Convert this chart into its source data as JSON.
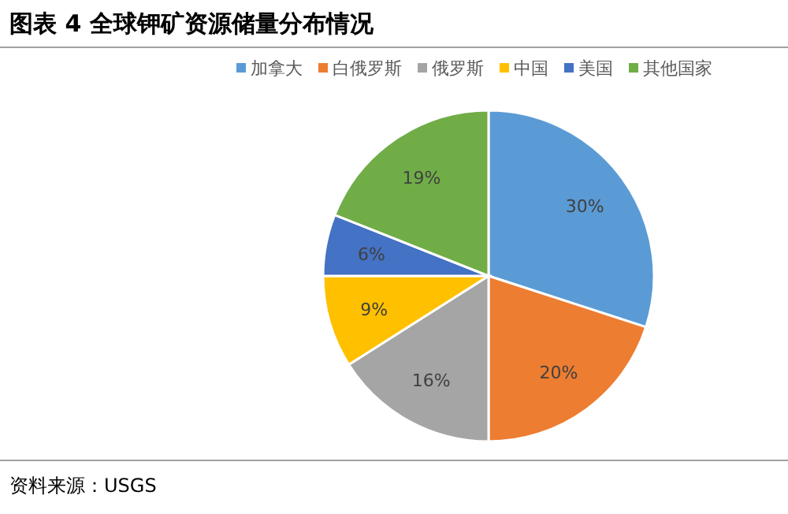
{
  "chart_data": {
    "type": "pie",
    "title": "图表 4  全球钾矿资源储量分布情况",
    "categories": [
      "加拿大",
      "白俄罗斯",
      "俄罗斯",
      "中国",
      "美国",
      "其他国家"
    ],
    "values": [
      30,
      20,
      16,
      9,
      6,
      19
    ],
    "colors": [
      "#5b9bd5",
      "#ed7d31",
      "#a5a5a5",
      "#ffc000",
      "#4472c4",
      "#70ad47"
    ],
    "value_labels": [
      "30%",
      "20%",
      "16%",
      "9%",
      "6%",
      "19%"
    ],
    "legend": "top",
    "annotations": [
      "资料来源：USGS"
    ]
  }
}
